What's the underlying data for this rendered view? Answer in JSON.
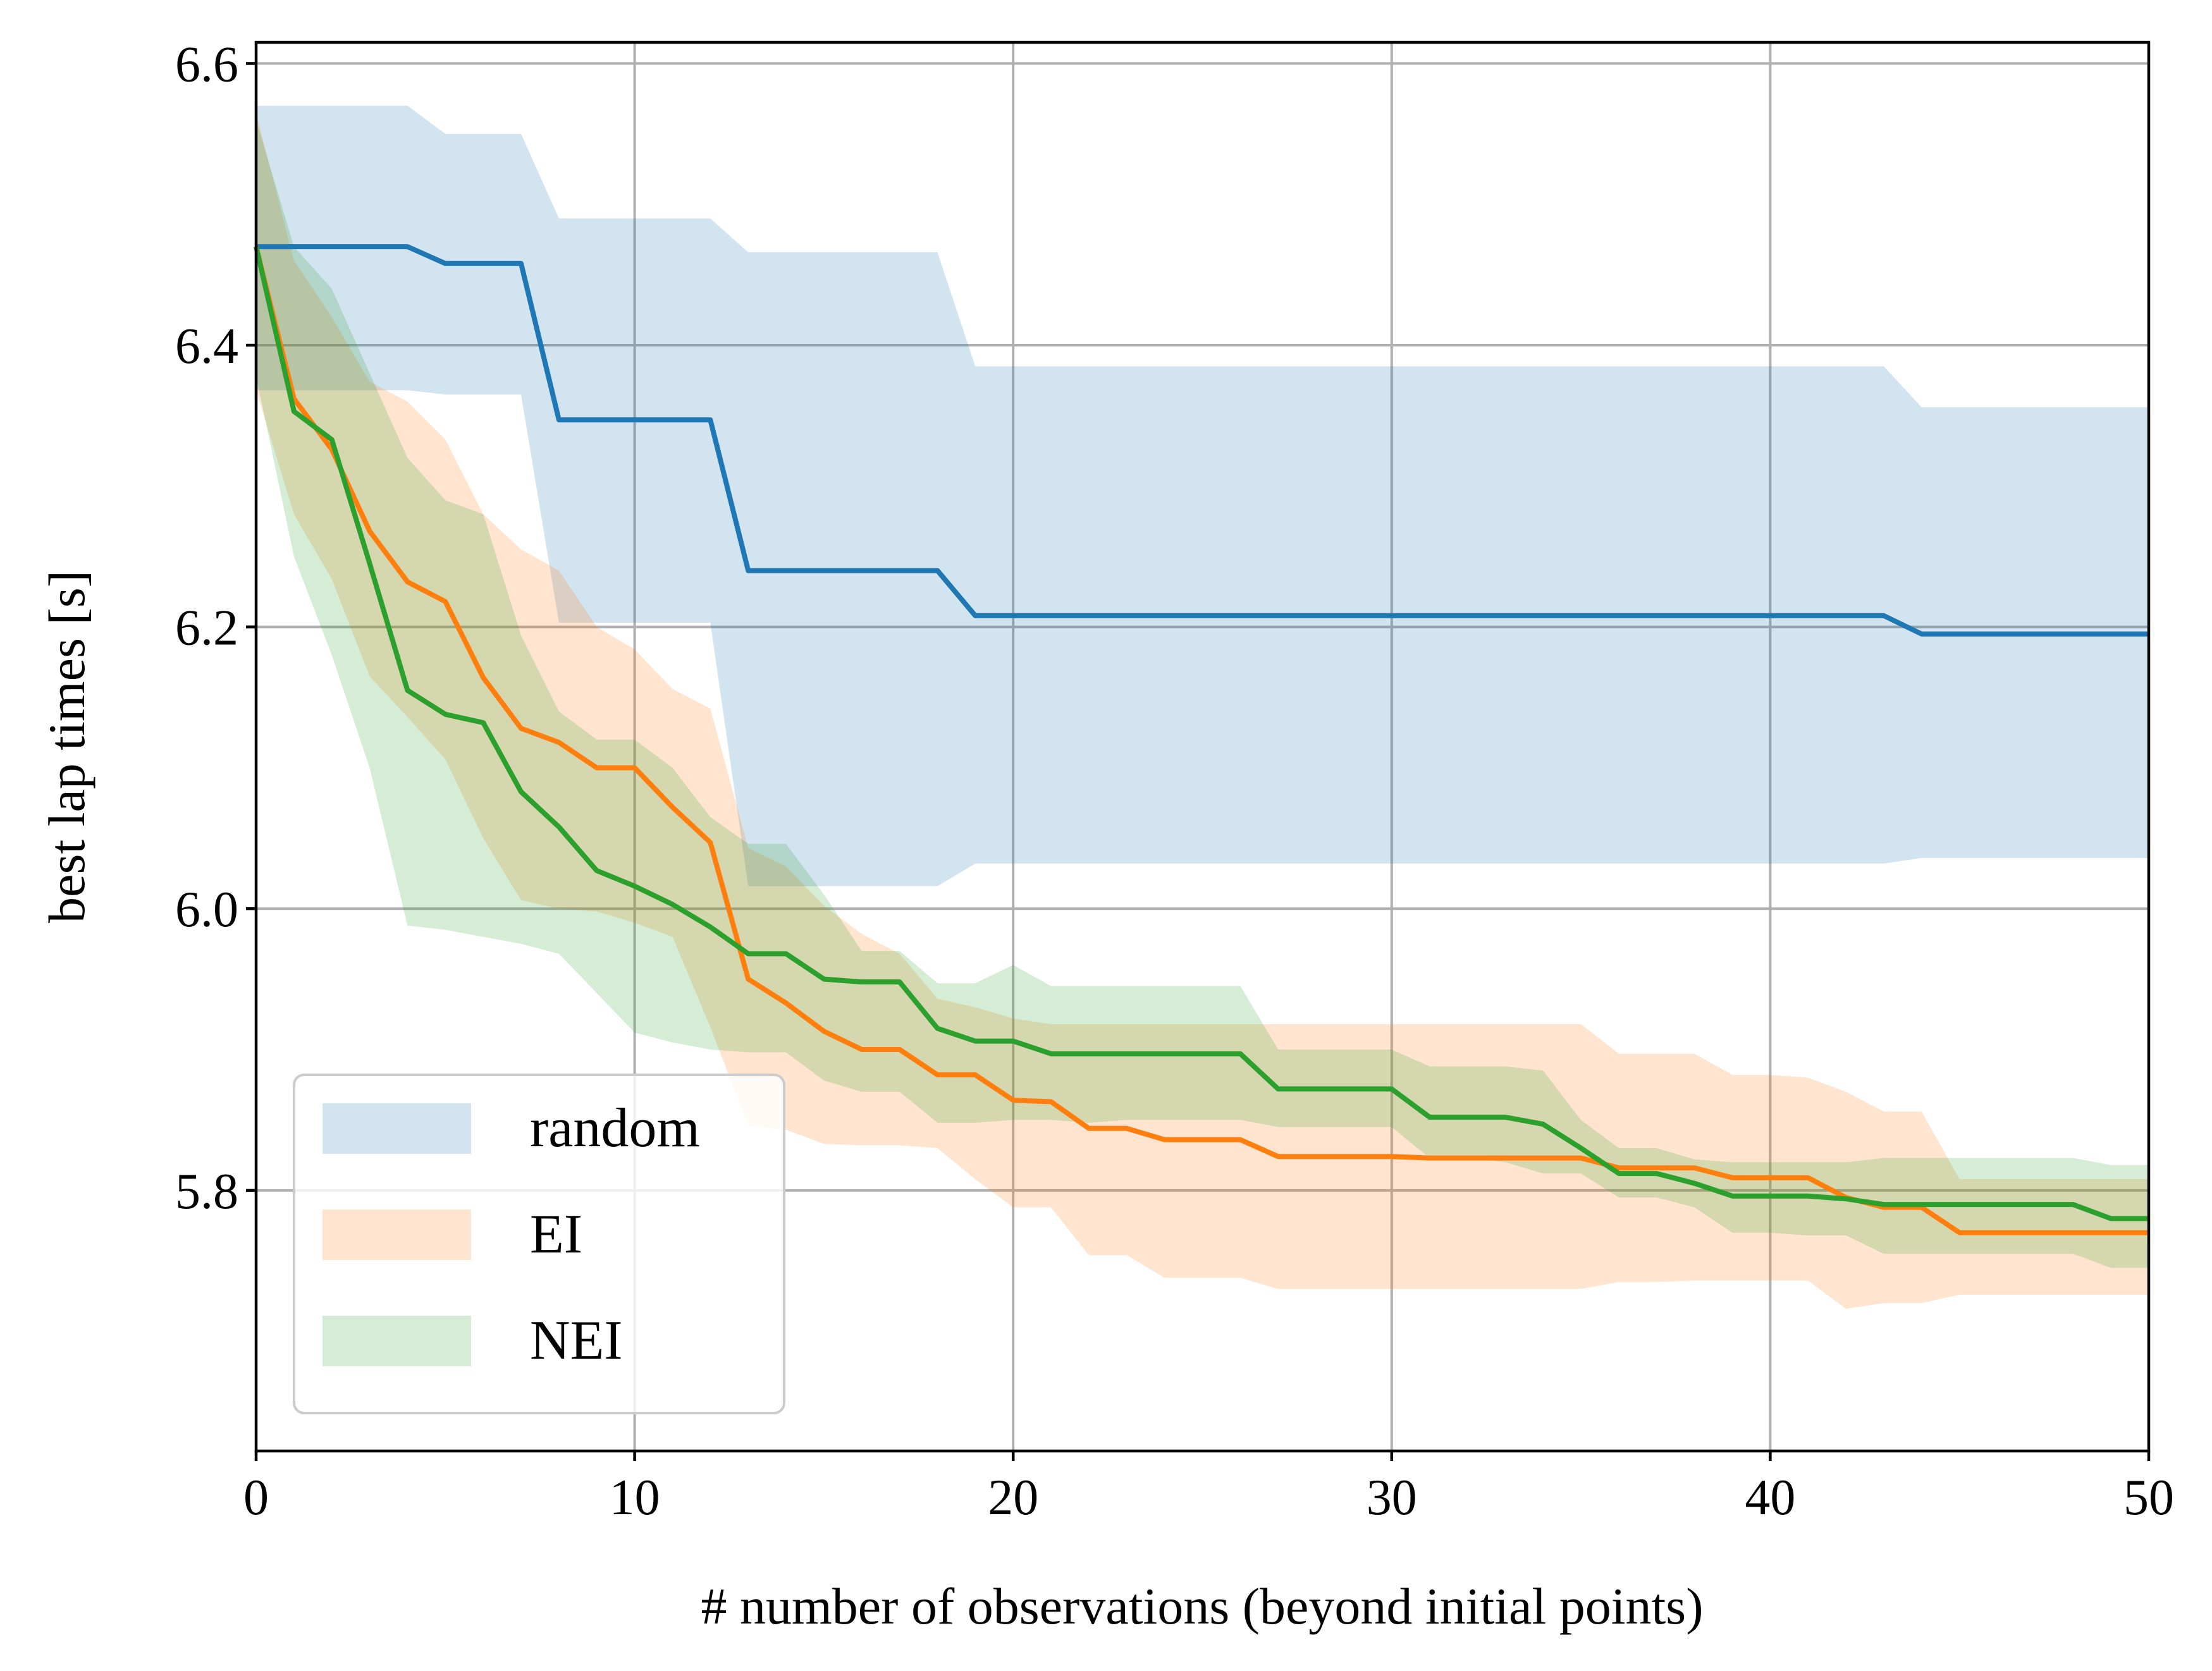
{
  "chart_data": {
    "type": "line",
    "title": "",
    "xlabel": "# number of observations (beyond initial points)",
    "ylabel": "best lap times [s]",
    "xlim": [
      0,
      50
    ],
    "ylim": [
      5.615,
      6.615
    ],
    "xticks": [
      "0",
      "10",
      "20",
      "30",
      "40",
      "50"
    ],
    "yticks": [
      "5.8",
      "6.0",
      "6.2",
      "6.4",
      "6.6"
    ],
    "grid": true,
    "legend_position": "lower-left",
    "series": [
      {
        "name": "random",
        "color": "#1f77b4",
        "band_opacity": 0.2,
        "x": [
          0,
          4,
          5,
          7,
          8,
          12,
          13,
          18,
          19,
          43,
          44,
          50
        ],
        "mean": [
          6.47,
          6.47,
          6.458,
          6.458,
          6.347,
          6.347,
          6.24,
          6.24,
          6.208,
          6.208,
          6.195,
          6.195
        ],
        "upper": [
          6.57,
          6.57,
          6.55,
          6.55,
          6.49,
          6.49,
          6.466,
          6.466,
          6.385,
          6.385,
          6.356,
          6.356
        ],
        "lower": [
          6.368,
          6.368,
          6.365,
          6.365,
          6.203,
          6.203,
          6.016,
          6.016,
          6.032,
          6.032,
          6.036,
          6.036
        ]
      },
      {
        "name": "EI",
        "color": "#ff7f0e",
        "band_opacity": 0.2,
        "x": [
          0,
          1,
          2,
          3,
          4,
          5,
          6,
          7,
          8,
          9,
          10,
          11,
          12,
          13,
          14,
          15,
          16,
          17,
          18,
          19,
          20,
          21,
          22,
          23,
          24,
          25,
          26,
          27,
          28,
          29,
          30,
          31,
          32,
          33,
          34,
          35,
          36,
          37,
          38,
          39,
          40,
          41,
          42,
          43,
          44,
          45,
          46,
          47,
          48,
          49,
          50
        ],
        "mean": [
          6.47,
          6.362,
          6.326,
          6.268,
          6.232,
          6.218,
          6.164,
          6.128,
          6.118,
          6.1,
          6.1,
          6.072,
          6.047,
          5.95,
          5.933,
          5.913,
          5.9,
          5.9,
          5.882,
          5.882,
          5.864,
          5.863,
          5.844,
          5.844,
          5.836,
          5.836,
          5.836,
          5.824,
          5.824,
          5.824,
          5.824,
          5.823,
          5.823,
          5.823,
          5.823,
          5.823,
          5.816,
          5.816,
          5.816,
          5.809,
          5.809,
          5.809,
          5.795,
          5.788,
          5.788,
          5.77,
          5.77,
          5.77,
          5.77,
          5.77,
          5.77
        ],
        "upper": [
          6.565,
          6.46,
          6.42,
          6.374,
          6.36,
          6.333,
          6.28,
          6.255,
          6.24,
          6.2,
          6.184,
          6.156,
          6.142,
          6.043,
          6.03,
          6.002,
          5.982,
          5.968,
          5.936,
          5.93,
          5.922,
          5.918,
          5.918,
          5.918,
          5.918,
          5.918,
          5.918,
          5.918,
          5.918,
          5.918,
          5.918,
          5.918,
          5.918,
          5.918,
          5.918,
          5.918,
          5.897,
          5.897,
          5.897,
          5.882,
          5.882,
          5.88,
          5.87,
          5.856,
          5.856,
          5.808,
          5.808,
          5.808,
          5.808,
          5.808,
          5.808
        ],
        "lower": [
          6.368,
          6.28,
          6.234,
          6.165,
          6.136,
          6.106,
          6.05,
          6.006,
          6.0,
          5.998,
          5.99,
          5.98,
          5.916,
          5.846,
          5.843,
          5.833,
          5.832,
          5.832,
          5.83,
          5.808,
          5.788,
          5.788,
          5.754,
          5.754,
          5.738,
          5.738,
          5.738,
          5.73,
          5.73,
          5.73,
          5.73,
          5.73,
          5.73,
          5.73,
          5.73,
          5.73,
          5.735,
          5.735,
          5.736,
          5.736,
          5.736,
          5.736,
          5.716,
          5.72,
          5.72,
          5.726,
          5.726,
          5.726,
          5.726,
          5.726,
          5.726
        ]
      },
      {
        "name": "NEI",
        "color": "#2ca02c",
        "band_opacity": 0.2,
        "x": [
          0,
          1,
          2,
          3,
          4,
          5,
          6,
          7,
          8,
          9,
          10,
          11,
          12,
          13,
          14,
          15,
          16,
          17,
          18,
          19,
          20,
          21,
          22,
          23,
          24,
          25,
          26,
          27,
          28,
          29,
          30,
          31,
          32,
          33,
          34,
          35,
          36,
          37,
          38,
          39,
          40,
          41,
          42,
          43,
          44,
          45,
          46,
          47,
          48,
          49,
          50
        ],
        "mean": [
          6.47,
          6.353,
          6.333,
          6.245,
          6.155,
          6.138,
          6.132,
          6.083,
          6.058,
          6.027,
          6.016,
          6.003,
          5.987,
          5.968,
          5.968,
          5.95,
          5.948,
          5.948,
          5.915,
          5.906,
          5.906,
          5.897,
          5.897,
          5.897,
          5.897,
          5.897,
          5.897,
          5.872,
          5.872,
          5.872,
          5.872,
          5.852,
          5.852,
          5.852,
          5.847,
          5.83,
          5.812,
          5.812,
          5.805,
          5.796,
          5.796,
          5.796,
          5.794,
          5.79,
          5.79,
          5.79,
          5.79,
          5.79,
          5.79,
          5.78,
          5.78
        ],
        "upper": [
          6.56,
          6.47,
          6.44,
          6.38,
          6.32,
          6.29,
          6.28,
          6.194,
          6.14,
          6.12,
          6.12,
          6.1,
          6.065,
          6.046,
          6.046,
          6.01,
          5.97,
          5.97,
          5.947,
          5.947,
          5.96,
          5.945,
          5.945,
          5.945,
          5.945,
          5.945,
          5.945,
          5.9,
          5.9,
          5.9,
          5.9,
          5.888,
          5.888,
          5.888,
          5.885,
          5.85,
          5.83,
          5.83,
          5.822,
          5.82,
          5.82,
          5.82,
          5.82,
          5.823,
          5.823,
          5.823,
          5.823,
          5.823,
          5.823,
          5.818,
          5.818
        ],
        "lower": [
          6.378,
          6.25,
          6.18,
          6.1,
          5.988,
          5.985,
          5.98,
          5.975,
          5.968,
          5.94,
          5.912,
          5.905,
          5.9,
          5.898,
          5.898,
          5.878,
          5.87,
          5.87,
          5.848,
          5.848,
          5.85,
          5.85,
          5.848,
          5.85,
          5.85,
          5.85,
          5.85,
          5.845,
          5.845,
          5.845,
          5.845,
          5.823,
          5.823,
          5.82,
          5.812,
          5.812,
          5.795,
          5.795,
          5.788,
          5.77,
          5.77,
          5.768,
          5.768,
          5.755,
          5.755,
          5.755,
          5.755,
          5.755,
          5.755,
          5.745,
          5.745
        ]
      }
    ]
  }
}
